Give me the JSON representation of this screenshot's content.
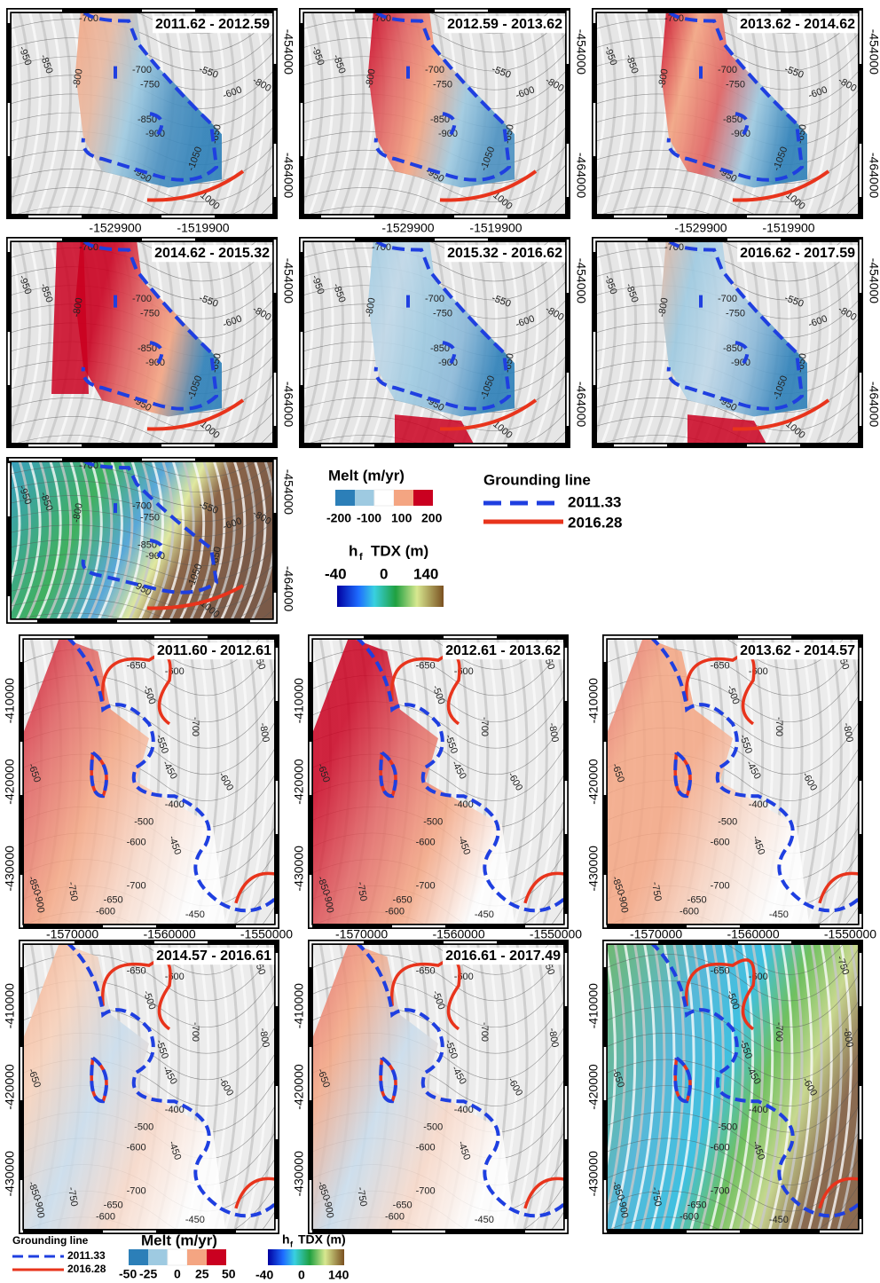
{
  "top": {
    "panels": [
      "2011.62 - 2012.59",
      "2012.59 - 2013.62",
      "2013.62 - 2014.62",
      "2014.62 - 2015.32",
      "2015.32 - 2016.62",
      "2016.62 - 2017.59"
    ],
    "y_ticks": [
      "-454000",
      "-464000"
    ],
    "x_ticks": [
      "-1529900",
      "-1519900"
    ],
    "contour_labels": [
      "-700",
      "-950",
      "-850",
      "-800",
      "-550",
      "-600",
      "-800",
      "-700",
      "-750",
      "-650",
      "-850",
      "-900",
      "-1050",
      "-950",
      "-1000"
    ]
  },
  "top_legend": {
    "melt_title": "Melt (m/yr)",
    "melt_ticks": [
      "-200",
      "-100",
      "100",
      "200"
    ],
    "hf_symbol": "h",
    "hf_sub": "f",
    "hf_title": "TDX (m)",
    "hf_ticks": [
      "-40",
      "0",
      "140"
    ],
    "gl_title": "Grounding line",
    "gl_dashed": "2011.33",
    "gl_solid": "2016.28"
  },
  "bottom": {
    "panels": [
      "2011.60 - 2012.61",
      "2012.61 - 2013.62",
      "2013.62 - 2014.57",
      "2014.57 - 2016.61",
      "2016.61 - 2017.49"
    ],
    "y_ticks": [
      "-410000",
      "-420000",
      "-430000"
    ],
    "x_ticks": [
      "-1570000",
      "-1560000",
      "-1550000"
    ],
    "contour_labels": [
      "-650",
      "-600",
      "-750",
      "-500",
      "-700",
      "-800",
      "-550",
      "-450",
      "-400",
      "-600",
      "-500",
      "-600",
      "-450",
      "-700",
      "-650",
      "-600",
      "-450",
      "-850",
      "-900",
      "-750",
      "-650"
    ]
  },
  "bottom_legend": {
    "gl_title": "Grounding line",
    "gl_dashed": "2011.33",
    "gl_solid": "2016.28",
    "melt_title": "Melt (m/yr)",
    "melt_ticks": [
      "-50",
      "-25",
      "0",
      "25",
      "50"
    ],
    "hf_symbol": "h",
    "hf_sub": "f",
    "hf_title": "TDX (m)",
    "hf_ticks": [
      "-40",
      "0",
      "140"
    ]
  }
}
